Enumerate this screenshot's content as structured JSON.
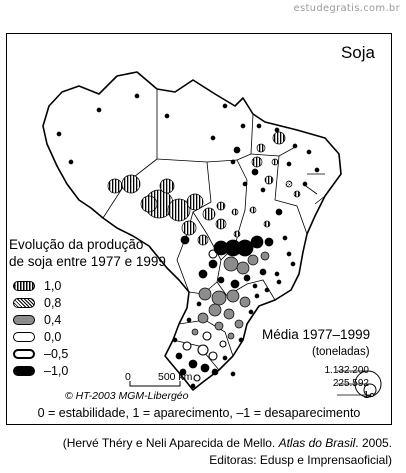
{
  "watermark": "estudegratis.com.br",
  "map": {
    "title": "Soja",
    "legend_title_line1": "Evolução da produção",
    "legend_title_line2": "de soja entre 1977 e 1999",
    "legend": [
      {
        "value": "1,0",
        "pattern": "vertical-stripes"
      },
      {
        "value": "0,8",
        "pattern": "crosshatch"
      },
      {
        "value": "0,4",
        "pattern": "gray"
      },
      {
        "value": "0,0",
        "pattern": "white"
      },
      {
        "value": "–0,5",
        "pattern": "white-heavy"
      },
      {
        "value": "–1,0",
        "pattern": "black"
      }
    ],
    "average_title": "Média 1977–1999",
    "average_unit": "(toneladas)",
    "size_legend": [
      "1.132.200",
      "225.592",
      "1"
    ],
    "scale_zero": "0",
    "scale_label": "500 km",
    "credit": "© HT-2003 MGM-Libergéo",
    "footnote": "0 = estabilidade, 1 = aparecimento, –1 = desaparecimento"
  },
  "source": {
    "line1_prefix": "(Hervé Théry e Neli Aparecida de Mello. ",
    "line1_title": "Atlas do Brasil",
    "line1_suffix": ". 2005.",
    "line2": "Editoras: Edusp e Imprensaoficial)"
  }
}
